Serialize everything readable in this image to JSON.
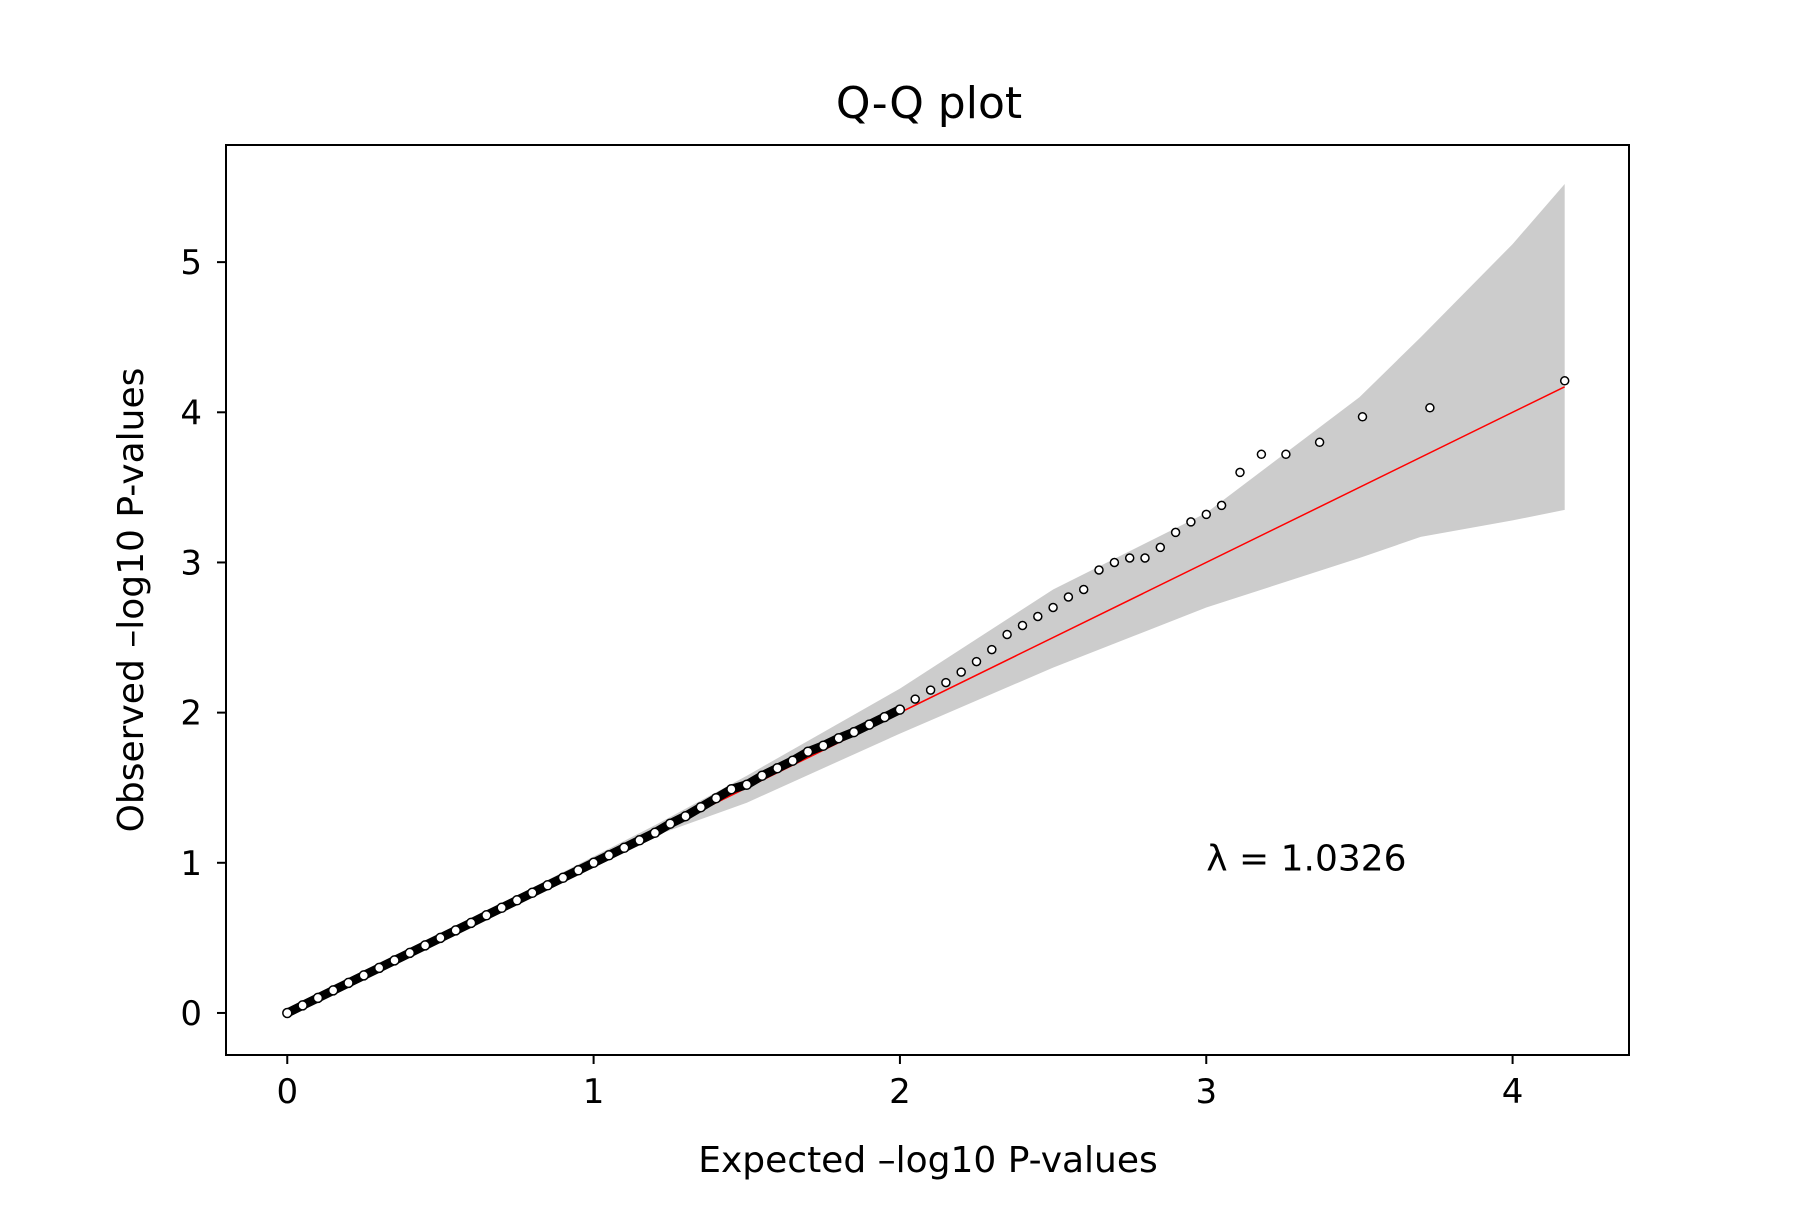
{
  "chart_data": {
    "type": "scatter",
    "title": "Q-Q plot",
    "xlabel": "Expected –log10 P-values",
    "ylabel": "Observed –log10 P-values",
    "xlim": [
      -0.2,
      4.38
    ],
    "ylim": [
      -0.28,
      5.78
    ],
    "xticks": [
      0,
      1,
      2,
      3,
      4
    ],
    "yticks": [
      0,
      1,
      2,
      3,
      4,
      5
    ],
    "xtick_labels": [
      "0",
      "1",
      "2",
      "3",
      "4"
    ],
    "ytick_labels": [
      "0",
      "1",
      "2",
      "3",
      "4",
      "5"
    ],
    "grid": false,
    "annotation": {
      "text": "λ = 1.0326",
      "x": 3.0,
      "y": 0.95
    },
    "reference_line": {
      "color": "#ff0000",
      "x": [
        0,
        4.17
      ],
      "y": [
        0,
        4.17
      ]
    },
    "confidence_band": {
      "color": "#cccccc",
      "x": [
        0,
        1.2,
        1.5,
        2.0,
        2.5,
        3.0,
        3.5,
        3.7,
        4.0,
        4.17
      ],
      "upper": [
        0,
        1.25,
        1.58,
        2.16,
        2.82,
        3.33,
        4.1,
        4.5,
        5.12,
        5.52
      ],
      "lower": [
        0,
        1.18,
        1.4,
        1.86,
        2.3,
        2.7,
        3.03,
        3.17,
        3.28,
        3.35
      ]
    },
    "series": [
      {
        "marker": "open-circle",
        "x": [
          0.0,
          0.05,
          0.1,
          0.15,
          0.2,
          0.25,
          0.3,
          0.35,
          0.4,
          0.45,
          0.5,
          0.55,
          0.6,
          0.65,
          0.7,
          0.75,
          0.8,
          0.85,
          0.9,
          0.95,
          1.0,
          1.05,
          1.1,
          1.15,
          1.2,
          1.25,
          1.3,
          1.35,
          1.4,
          1.45,
          1.5,
          1.55,
          1.6,
          1.65,
          1.7,
          1.75,
          1.8,
          1.85,
          1.9,
          1.95,
          2.0,
          2.05,
          2.1,
          2.15,
          2.2,
          2.25,
          2.3,
          2.35,
          2.4,
          2.45,
          2.5,
          2.55,
          2.6,
          2.65,
          2.7,
          2.75,
          2.8,
          2.85,
          2.9,
          2.95,
          3.0,
          3.05,
          3.11,
          3.18,
          3.26,
          3.37,
          3.51,
          3.73,
          4.17
        ],
        "y": [
          0.0,
          0.05,
          0.1,
          0.15,
          0.2,
          0.25,
          0.3,
          0.35,
          0.4,
          0.45,
          0.5,
          0.55,
          0.6,
          0.65,
          0.7,
          0.75,
          0.8,
          0.85,
          0.9,
          0.95,
          1.0,
          1.05,
          1.1,
          1.15,
          1.2,
          1.26,
          1.31,
          1.37,
          1.43,
          1.49,
          1.52,
          1.58,
          1.63,
          1.68,
          1.74,
          1.78,
          1.83,
          1.87,
          1.92,
          1.97,
          2.02,
          2.09,
          2.15,
          2.2,
          2.27,
          2.34,
          2.42,
          2.52,
          2.58,
          2.64,
          2.7,
          2.77,
          2.82,
          2.95,
          3.0,
          3.03,
          3.03,
          3.1,
          3.2,
          3.27,
          3.32,
          3.38,
          3.6,
          3.72,
          3.72,
          3.8,
          3.97,
          4.03,
          4.21
        ]
      }
    ]
  }
}
